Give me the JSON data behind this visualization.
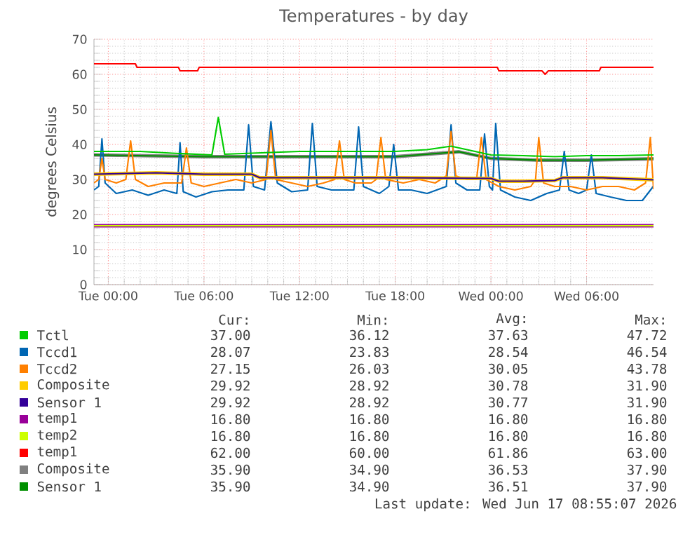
{
  "chart_data": {
    "type": "line",
    "title": "Temperatures - by day",
    "ylabel": "degrees Celsius",
    "xlim": [
      "2026-06-15T23:06",
      "2026-06-17T10:12"
    ],
    "ylim": [
      0,
      70
    ],
    "xticks": [
      {
        "value": "2026-06-16T00:00",
        "label": "Tue 00:00"
      },
      {
        "value": "2026-06-16T06:00",
        "label": "Tue 06:00"
      },
      {
        "value": "2026-06-16T12:00",
        "label": "Tue 12:00"
      },
      {
        "value": "2026-06-16T18:00",
        "label": "Tue 18:00"
      },
      {
        "value": "2026-06-17T00:00",
        "label": "Wed 00:00"
      },
      {
        "value": "2026-06-17T06:00",
        "label": "Wed 06:00"
      }
    ],
    "yticks": [
      0,
      10,
      20,
      30,
      40,
      50,
      60,
      70
    ],
    "grid": true,
    "legend": "bottom",
    "marker": "none",
    "line_style": "solid",
    "series": [
      {
        "name": "temp1",
        "color": "#990099",
        "x": [
          "2026-06-15T23:06",
          "2026-06-17T10:12"
        ],
        "values": [
          16.8,
          16.8
        ]
      },
      {
        "name": "temp2",
        "color": "#ccff00",
        "x": [
          "2026-06-15T23:06",
          "2026-06-17T10:12"
        ],
        "values": [
          16.8,
          16.8
        ]
      },
      {
        "name": "Composite",
        "color": "#808080",
        "x": [
          "2026-06-15T23:06",
          "2026-06-16T06:00",
          "2026-06-16T12:00",
          "2026-06-16T18:00",
          "2026-06-16T22:00",
          "2026-06-17T00:00",
          "2026-06-17T03:00",
          "2026-06-17T06:00",
          "2026-06-17T10:12"
        ],
        "values": [
          37,
          36.5,
          36.5,
          36.5,
          37.9,
          36,
          35.5,
          35.5,
          35.9
        ]
      },
      {
        "name": "Sensor 1",
        "color": "#008f00",
        "x": [
          "2026-06-15T23:06",
          "2026-06-16T06:00",
          "2026-06-16T12:00",
          "2026-06-16T18:00",
          "2026-06-16T22:00",
          "2026-06-17T00:00",
          "2026-06-17T03:00",
          "2026-06-17T06:00",
          "2026-06-17T10:12"
        ],
        "values": [
          37,
          36.5,
          36.5,
          36.5,
          37.9,
          36,
          35.5,
          35.5,
          35.9
        ]
      },
      {
        "name": "Tccd1",
        "color": "#0066b3",
        "x": [
          "2026-06-15T23:06",
          "2026-06-15T23:24",
          "2026-06-15T23:36",
          "2026-06-15T23:48",
          "2026-06-16T00:30",
          "2026-06-16T01:30",
          "2026-06-16T02:30",
          "2026-06-16T03:30",
          "2026-06-16T04:18",
          "2026-06-16T04:30",
          "2026-06-16T04:42",
          "2026-06-16T05:30",
          "2026-06-16T06:30",
          "2026-06-16T07:30",
          "2026-06-16T08:30",
          "2026-06-16T08:48",
          "2026-06-16T09:06",
          "2026-06-16T09:48",
          "2026-06-16T10:12",
          "2026-06-16T10:36",
          "2026-06-16T11:30",
          "2026-06-16T12:30",
          "2026-06-16T12:48",
          "2026-06-16T13:06",
          "2026-06-16T14:00",
          "2026-06-16T15:24",
          "2026-06-16T15:42",
          "2026-06-16T16:00",
          "2026-06-16T17:00",
          "2026-06-16T17:36",
          "2026-06-16T17:54",
          "2026-06-16T18:12",
          "2026-06-16T19:00",
          "2026-06-16T20:00",
          "2026-06-16T21:12",
          "2026-06-16T21:30",
          "2026-06-16T21:48",
          "2026-06-16T22:30",
          "2026-06-16T23:18",
          "2026-06-16T23:36",
          "2026-06-16T23:54",
          "2026-06-17T00:06",
          "2026-06-17T00:18",
          "2026-06-17T00:36",
          "2026-06-17T01:30",
          "2026-06-17T02:30",
          "2026-06-17T03:30",
          "2026-06-17T04:18",
          "2026-06-17T04:36",
          "2026-06-17T04:54",
          "2026-06-17T05:30",
          "2026-06-17T06:00",
          "2026-06-17T06:18",
          "2026-06-17T06:36",
          "2026-06-17T07:30",
          "2026-06-17T08:30",
          "2026-06-17T09:30",
          "2026-06-17T10:12"
        ],
        "values": [
          27,
          28,
          41.6,
          29,
          26,
          27,
          25.5,
          27,
          26,
          40.5,
          26.5,
          25,
          26.5,
          27,
          27,
          45.6,
          28,
          27,
          46.5,
          29,
          26.5,
          27,
          46,
          28,
          27,
          27,
          45,
          28,
          26,
          28,
          40,
          27,
          27,
          26,
          28,
          45.6,
          29,
          27,
          27,
          43,
          28,
          27,
          46,
          27,
          25,
          24,
          26,
          27,
          38,
          27,
          26,
          27,
          37,
          26,
          25,
          24,
          24,
          28.1
        ]
      },
      {
        "name": "Tccd2",
        "color": "#ff8000",
        "x": [
          "2026-06-15T23:06",
          "2026-06-15T23:24",
          "2026-06-15T23:36",
          "2026-06-15T23:48",
          "2026-06-16T00:30",
          "2026-06-16T01:06",
          "2026-06-16T01:24",
          "2026-06-16T01:42",
          "2026-06-16T02:30",
          "2026-06-16T03:30",
          "2026-06-16T04:36",
          "2026-06-16T04:54",
          "2026-06-16T05:12",
          "2026-06-16T06:00",
          "2026-06-16T07:00",
          "2026-06-16T08:00",
          "2026-06-16T09:00",
          "2026-06-16T09:54",
          "2026-06-16T10:12",
          "2026-06-16T10:30",
          "2026-06-16T11:30",
          "2026-06-16T12:30",
          "2026-06-16T13:30",
          "2026-06-16T14:12",
          "2026-06-16T14:30",
          "2026-06-16T14:48",
          "2026-06-16T15:30",
          "2026-06-16T16:30",
          "2026-06-16T16:48",
          "2026-06-16T17:06",
          "2026-06-16T17:24",
          "2026-06-16T18:30",
          "2026-06-16T19:30",
          "2026-06-16T20:30",
          "2026-06-16T21:12",
          "2026-06-16T21:30",
          "2026-06-16T21:48",
          "2026-06-16T22:30",
          "2026-06-16T23:06",
          "2026-06-16T23:24",
          "2026-06-16T23:42",
          "2026-06-17T00:30",
          "2026-06-17T01:30",
          "2026-06-17T02:30",
          "2026-06-17T02:48",
          "2026-06-17T03:00",
          "2026-06-17T03:18",
          "2026-06-17T04:00",
          "2026-06-17T05:00",
          "2026-06-17T06:00",
          "2026-06-17T07:00",
          "2026-06-17T08:00",
          "2026-06-17T09:00",
          "2026-06-17T09:42",
          "2026-06-17T10:00",
          "2026-06-17T10:12"
        ],
        "values": [
          29,
          30,
          36,
          30,
          29,
          30,
          41,
          30,
          28,
          29,
          29,
          39,
          29,
          28,
          29,
          30,
          29,
          30,
          44,
          30,
          29,
          28,
          29,
          30,
          41,
          30,
          29,
          29,
          30,
          42,
          30,
          29,
          30,
          29,
          31,
          43.7,
          31,
          30,
          30,
          42,
          30,
          28,
          27,
          28,
          30,
          42,
          29,
          28,
          28,
          27,
          28,
          28,
          27,
          29,
          42,
          27.2
        ]
      },
      {
        "name": "Tctl",
        "color": "#00cc00",
        "x": [
          "2026-06-15T23:06",
          "2026-06-16T02:00",
          "2026-06-16T04:00",
          "2026-06-16T06:30",
          "2026-06-16T06:54",
          "2026-06-16T07:18",
          "2026-06-16T09:00",
          "2026-06-16T12:00",
          "2026-06-16T15:00",
          "2026-06-16T18:00",
          "2026-06-16T20:00",
          "2026-06-16T21:30",
          "2026-06-16T22:30",
          "2026-06-17T00:00",
          "2026-06-17T02:00",
          "2026-06-17T04:00",
          "2026-06-17T06:00",
          "2026-06-17T08:00",
          "2026-06-17T10:12"
        ],
        "values": [
          38,
          38,
          37.5,
          37,
          47.7,
          37.2,
          37.5,
          38,
          38,
          38,
          38.5,
          39.5,
          38.5,
          37,
          36.8,
          36.5,
          36.8,
          36.8,
          37
        ]
      },
      {
        "name": "Composite",
        "color": "#ffcc00",
        "x": [
          "2026-06-15T23:06",
          "2026-06-16T03:00",
          "2026-06-16T06:00",
          "2026-06-16T09:00",
          "2026-06-16T09:30",
          "2026-06-16T12:00",
          "2026-06-16T18:00",
          "2026-06-17T00:00",
          "2026-06-17T00:30",
          "2026-06-17T02:00",
          "2026-06-17T04:00",
          "2026-06-17T04:30",
          "2026-06-17T07:00",
          "2026-06-17T10:12"
        ],
        "values": [
          31.5,
          31.9,
          31.5,
          31.5,
          30.5,
          30.5,
          30.5,
          30.3,
          29.5,
          29.5,
          29.7,
          30.5,
          30.5,
          29.9
        ]
      },
      {
        "name": "Sensor 1",
        "color": "#330099",
        "x": [
          "2026-06-15T23:06",
          "2026-06-16T03:00",
          "2026-06-16T06:00",
          "2026-06-16T09:00",
          "2026-06-16T09:30",
          "2026-06-16T12:00",
          "2026-06-16T18:00",
          "2026-06-17T00:00",
          "2026-06-17T00:30",
          "2026-06-17T02:00",
          "2026-06-17T04:00",
          "2026-06-17T04:30",
          "2026-06-17T07:00",
          "2026-06-17T10:12"
        ],
        "values": [
          31.5,
          31.9,
          31.5,
          31.5,
          30.5,
          30.5,
          30.5,
          30.3,
          29.5,
          29.5,
          29.7,
          30.5,
          30.5,
          29.9
        ]
      },
      {
        "name": "temp1",
        "color": "#ff0000",
        "x": [
          "2026-06-15T23:06",
          "2026-06-16T01:42",
          "2026-06-16T01:48",
          "2026-06-16T04:24",
          "2026-06-16T04:30",
          "2026-06-16T05:36",
          "2026-06-16T05:42",
          "2026-06-17T00:24",
          "2026-06-17T00:30",
          "2026-06-17T03:12",
          "2026-06-17T03:24",
          "2026-06-17T03:36",
          "2026-06-17T06:48",
          "2026-06-17T06:54",
          "2026-06-17T10:12"
        ],
        "values": [
          63,
          63,
          62,
          62,
          61,
          61,
          62,
          62,
          61,
          61,
          60,
          61,
          61,
          62,
          62
        ]
      }
    ],
    "annotations": [
      "Cur:",
      "Min:",
      "Avg:",
      "Max:",
      "37.00",
      "36.12",
      "37.63",
      "47.72",
      "28.07",
      "23.83",
      "28.54",
      "46.54",
      "27.15",
      "26.03",
      "30.05",
      "43.78",
      "29.92",
      "28.92",
      "30.78",
      "31.90",
      "29.92",
      "28.92",
      "30.77",
      "31.90",
      "16.80",
      "16.80",
      "16.80",
      "16.80",
      "16.80",
      "16.80",
      "16.80",
      "16.80",
      "62.00",
      "60.00",
      "61.86",
      "63.00",
      "35.90",
      "34.90",
      "36.53",
      "37.90",
      "35.90",
      "34.90",
      "36.51",
      "37.90",
      "Last update: Wed Jun 17 08:55:07 2026"
    ]
  }
}
